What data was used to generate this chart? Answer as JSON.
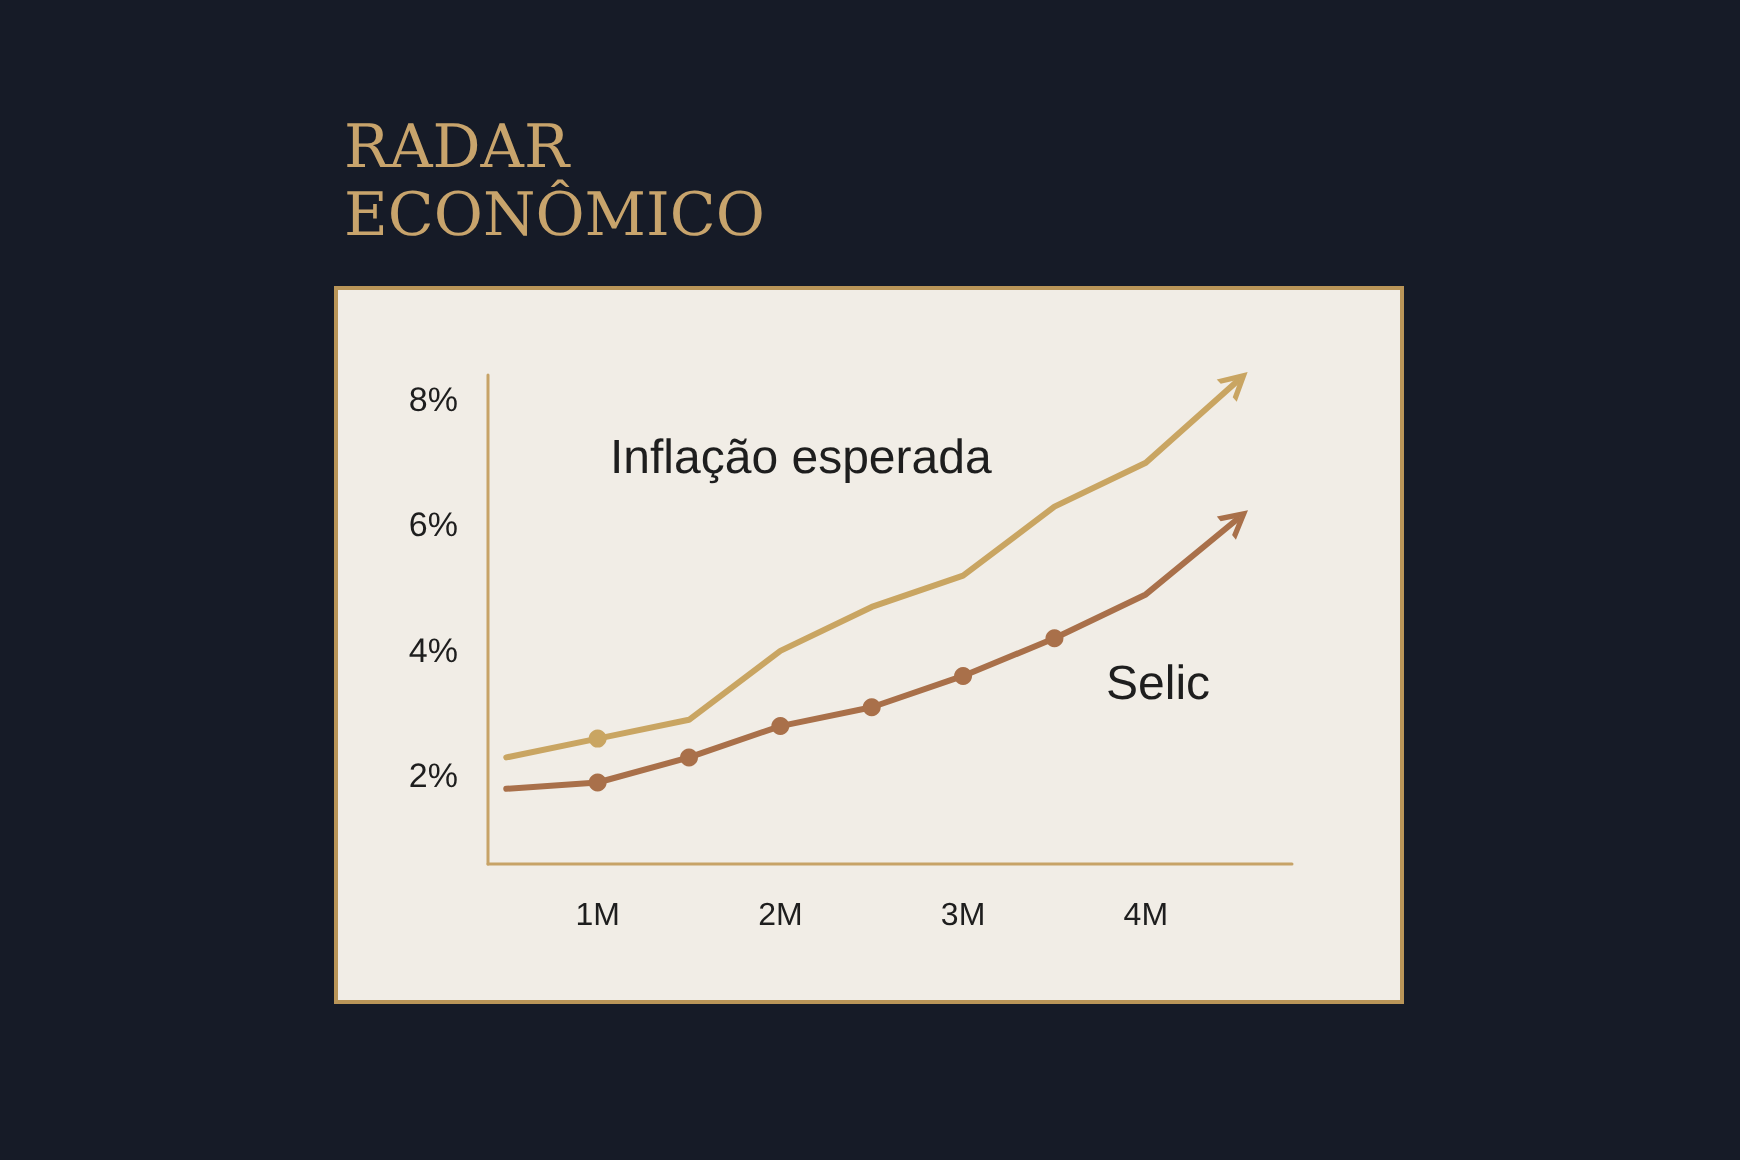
{
  "chart_data": {
    "type": "line",
    "title": "RADAR ECONÔMICO",
    "x": [
      0.5,
      1,
      1.5,
      2,
      2.5,
      3,
      3.5,
      4,
      4.5
    ],
    "series": [
      {
        "name": "Inflação esperada",
        "color": "#c9a562",
        "values": [
          2.3,
          2.6,
          2.9,
          4.0,
          4.7,
          5.2,
          6.3,
          7.0,
          8.3
        ],
        "marker": "none"
      },
      {
        "name": "Selic",
        "color": "#a9704a",
        "values": [
          1.8,
          1.9,
          2.3,
          2.8,
          3.1,
          3.6,
          4.2,
          4.9,
          6.1
        ],
        "marker": "none"
      },
      {
        "type": "scatter",
        "color": "#c9a562",
        "x": [
          1
        ],
        "values": [
          2.6
        ],
        "marker": "circle"
      },
      {
        "type": "scatter",
        "color": "#a9704a",
        "x": [
          1,
          1.5,
          2,
          2.5,
          3,
          3.5
        ],
        "values": [
          1.9,
          2.3,
          2.8,
          3.1,
          3.6,
          4.2
        ],
        "marker": "circle"
      }
    ],
    "xlim": [
      0.4,
      4.8
    ],
    "xticks": [
      {
        "value": 1,
        "label": "1M"
      },
      {
        "value": 2,
        "label": "2M"
      },
      {
        "value": 3,
        "label": "3M"
      },
      {
        "value": 4,
        "label": "4M"
      }
    ],
    "ylim": [
      0.6,
      8.4
    ],
    "yticks": [
      {
        "value": 2,
        "label": "2%"
      },
      {
        "value": 4,
        "label": "4%"
      },
      {
        "value": 6,
        "label": "6%"
      },
      {
        "value": 8,
        "label": "8%"
      }
    ],
    "grid": false,
    "legend": false,
    "line_style": "solid"
  }
}
